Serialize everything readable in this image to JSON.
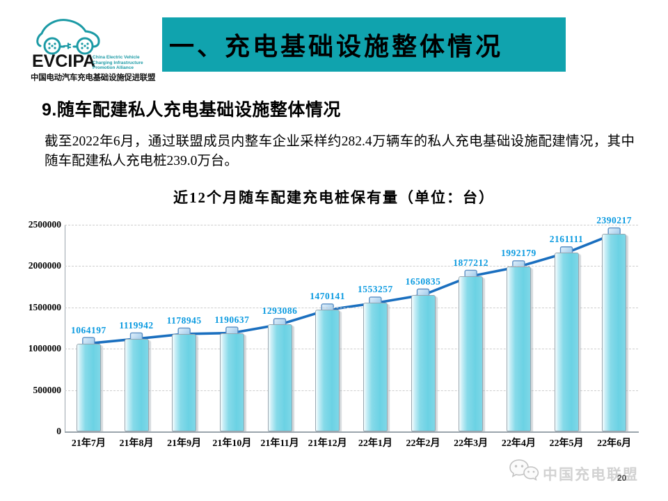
{
  "logo": {
    "acronym": "EVCIPA",
    "tagline_lines": [
      "China Electric Vehicle",
      "Charging Infrastructure",
      "Promotion Alliance"
    ],
    "name_cn": "中国电动汽车充电基础设施促进联盟",
    "brand_color": "#1b9aa5"
  },
  "banner": {
    "title": "一、充电基础设施整体情况",
    "bg_color": "#10a3ae"
  },
  "section": {
    "heading": "9.随车配建私人充电基础设施整体情况",
    "body": "截至2022年6月，通过联盟成员内整车企业采样约282.4万辆车的私人充电基础设施配建情况，其中随车配建私人充电桩239.0万台。"
  },
  "chart_data": {
    "type": "bar",
    "subtype": "bar-with-line-overlay",
    "title": "近12个月随车配建充电桩保有量（单位：台）",
    "categories": [
      "21年7月",
      "21年8月",
      "21年9月",
      "21年10月",
      "21年11月",
      "21年12月",
      "22年1月",
      "22年2月",
      "22年3月",
      "22年4月",
      "22年5月",
      "22年6月"
    ],
    "values": [
      1064197,
      1119942,
      1178945,
      1190637,
      1293086,
      1470141,
      1553257,
      1650835,
      1877212,
      1992179,
      2161111,
      2390217
    ],
    "ylim": [
      0,
      2500000
    ],
    "yticks": [
      0,
      500000,
      1000000,
      1500000,
      2000000,
      2500000
    ],
    "grid": "horizontal-dashed",
    "legend": "none",
    "colors": {
      "bar": "#76d6e6",
      "line": "#1a6fbf",
      "marker_fill": "#bfe0f5",
      "marker_border": "#5b8fc4",
      "data_label": "#0a9ae0"
    }
  },
  "footer": {
    "watermark_text": "中国充电联盟",
    "page_number": "20"
  }
}
